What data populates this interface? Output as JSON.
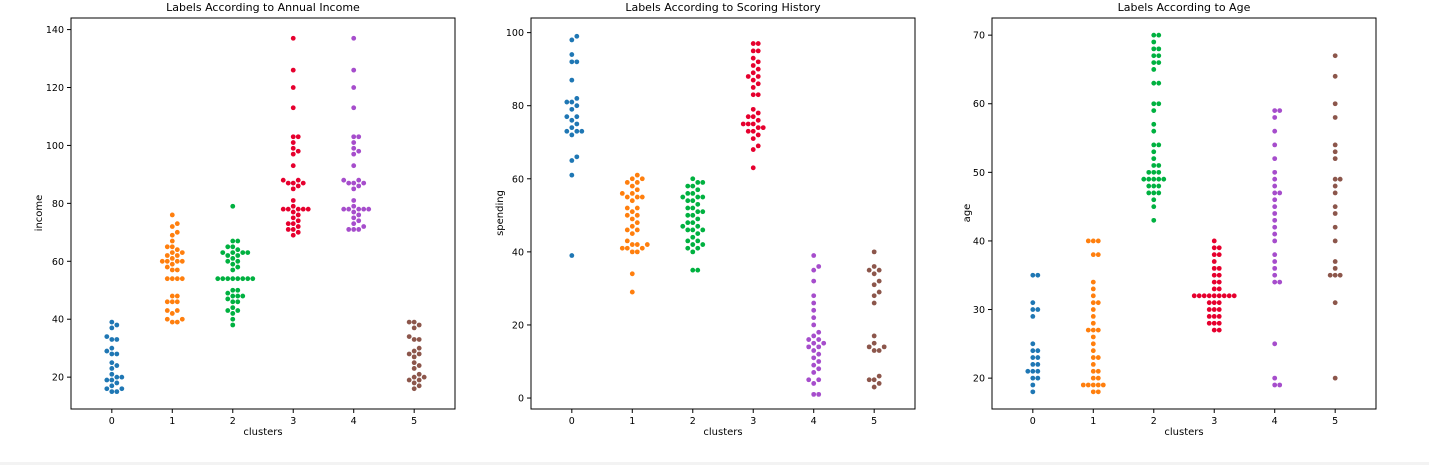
{
  "chart_data": [
    {
      "type": "scatter",
      "variant": "swarm",
      "title": "Labels According to Annual Income",
      "xlabel": "clusters",
      "ylabel": "income",
      "categories": [
        "0",
        "1",
        "2",
        "3",
        "4",
        "5"
      ],
      "ylim": [
        9,
        144
      ],
      "yticks": [
        20,
        40,
        60,
        80,
        100,
        120,
        140
      ],
      "grid": false,
      "series": [
        {
          "values": [
            15,
            15,
            16,
            16,
            17,
            18,
            19,
            19,
            20,
            20,
            21,
            23,
            24,
            25,
            28,
            28,
            29,
            30,
            33,
            33,
            34,
            37,
            38,
            39
          ],
          "color": "#1f77b4"
        },
        {
          "values": [
            39,
            39,
            40,
            40,
            42,
            43,
            43,
            46,
            46,
            46,
            48,
            48,
            54,
            54,
            54,
            54,
            57,
            57,
            58,
            59,
            60,
            60,
            60,
            60,
            61,
            62,
            62,
            63,
            63,
            64,
            65,
            65,
            67,
            69,
            70,
            72,
            73,
            76
          ],
          "color": "#ff7f0e"
        },
        {
          "values": [
            38,
            40,
            42,
            43,
            43,
            44,
            46,
            46,
            47,
            48,
            48,
            48,
            49,
            50,
            50,
            54,
            54,
            54,
            54,
            54,
            54,
            54,
            54,
            57,
            58,
            59,
            60,
            60,
            61,
            62,
            62,
            63,
            63,
            63,
            63,
            64,
            65,
            65,
            67,
            67,
            79
          ],
          "color": "#00b140"
        },
        {
          "values": [
            69,
            70,
            71,
            71,
            72,
            73,
            73,
            74,
            75,
            76,
            77,
            78,
            78,
            78,
            78,
            78,
            79,
            81,
            85,
            86,
            87,
            87,
            87,
            88,
            88,
            93,
            97,
            98,
            99,
            101,
            103,
            103,
            113,
            120,
            126,
            137
          ],
          "color": "#e6002e"
        },
        {
          "values": [
            71,
            71,
            71,
            72,
            73,
            74,
            75,
            76,
            77,
            78,
            78,
            78,
            78,
            78,
            79,
            81,
            85,
            86,
            87,
            87,
            87,
            88,
            88,
            93,
            97,
            98,
            99,
            101,
            103,
            103,
            113,
            120,
            126,
            137
          ],
          "color": "#a64dcc"
        },
        {
          "values": [
            16,
            17,
            18,
            19,
            19,
            20,
            20,
            21,
            23,
            24,
            25,
            27,
            28,
            28,
            29,
            30,
            33,
            33,
            34,
            37,
            38,
            39,
            39
          ],
          "color": "#8c564b"
        }
      ]
    },
    {
      "type": "scatter",
      "variant": "swarm",
      "title": "Labels According to Scoring History",
      "xlabel": "clusters",
      "ylabel": "spending",
      "categories": [
        "0",
        "1",
        "2",
        "3",
        "4",
        "5"
      ],
      "ylim": [
        -3,
        104
      ],
      "yticks": [
        0,
        20,
        40,
        60,
        80,
        100
      ],
      "grid": false,
      "series": [
        {
          "values": [
            39,
            61,
            65,
            66,
            72,
            73,
            73,
            73,
            74,
            75,
            76,
            77,
            77,
            79,
            80,
            81,
            81,
            82,
            87,
            92,
            92,
            94,
            98,
            99
          ],
          "color": "#1f77b4"
        },
        {
          "values": [
            29,
            34,
            40,
            40,
            41,
            41,
            41,
            42,
            42,
            42,
            43,
            45,
            46,
            46,
            47,
            48,
            49,
            50,
            50,
            51,
            52,
            52,
            54,
            55,
            55,
            55,
            56,
            56,
            57,
            58,
            59,
            59,
            60,
            60,
            61
          ],
          "color": "#ff7f0e"
        },
        {
          "values": [
            35,
            35,
            40,
            41,
            41,
            42,
            42,
            43,
            43,
            44,
            45,
            46,
            46,
            46,
            47,
            47,
            48,
            48,
            49,
            50,
            50,
            51,
            51,
            52,
            52,
            53,
            54,
            54,
            55,
            55,
            55,
            56,
            56,
            57,
            58,
            58,
            59,
            59,
            60
          ],
          "color": "#00b140"
        },
        {
          "values": [
            63,
            68,
            69,
            71,
            72,
            73,
            73,
            74,
            74,
            75,
            75,
            75,
            76,
            77,
            77,
            78,
            79,
            83,
            83,
            85,
            86,
            87,
            88,
            88,
            89,
            90,
            91,
            92,
            93,
            95,
            95,
            97,
            97
          ],
          "color": "#e6002e"
        },
        {
          "values": [
            1,
            1,
            4,
            5,
            5,
            7,
            8,
            9,
            10,
            11,
            12,
            13,
            14,
            14,
            15,
            15,
            16,
            16,
            17,
            18,
            20,
            22,
            24,
            26,
            28,
            32,
            35,
            36,
            39
          ],
          "color": "#a64dcc"
        },
        {
          "values": [
            3,
            4,
            5,
            5,
            6,
            13,
            13,
            14,
            14,
            15,
            17,
            26,
            28,
            29,
            31,
            32,
            34,
            35,
            35,
            36,
            40
          ],
          "color": "#8c564b"
        }
      ]
    },
    {
      "type": "scatter",
      "variant": "swarm",
      "title": "Labels According to Age",
      "xlabel": "clusters",
      "ylabel": "age",
      "categories": [
        "0",
        "1",
        "2",
        "3",
        "4",
        "5"
      ],
      "ylim": [
        15.5,
        72.5
      ],
      "yticks": [
        20,
        30,
        40,
        50,
        60,
        70
      ],
      "grid": false,
      "series": [
        {
          "values": [
            18,
            19,
            20,
            20,
            21,
            21,
            21,
            22,
            22,
            23,
            23,
            24,
            24,
            25,
            29,
            30,
            30,
            31,
            35,
            35
          ],
          "color": "#1f77b4"
        },
        {
          "values": [
            18,
            18,
            19,
            19,
            19,
            19,
            19,
            20,
            20,
            21,
            21,
            22,
            23,
            23,
            24,
            25,
            26,
            27,
            27,
            27,
            28,
            29,
            30,
            31,
            31,
            32,
            33,
            34,
            38,
            38,
            40,
            40,
            40
          ],
          "color": "#ff7f0e"
        },
        {
          "values": [
            43,
            45,
            46,
            47,
            47,
            47,
            48,
            48,
            48,
            49,
            49,
            49,
            49,
            49,
            50,
            50,
            50,
            51,
            51,
            52,
            53,
            54,
            54,
            56,
            57,
            59,
            60,
            60,
            63,
            63,
            65,
            66,
            66,
            67,
            67,
            68,
            68,
            69,
            70,
            70
          ],
          "color": "#00b140"
        },
        {
          "values": [
            27,
            27,
            28,
            28,
            28,
            29,
            29,
            29,
            30,
            30,
            30,
            31,
            31,
            31,
            32,
            32,
            32,
            32,
            32,
            32,
            32,
            32,
            32,
            33,
            33,
            34,
            34,
            35,
            35,
            36,
            36,
            37,
            38,
            38,
            39,
            39,
            40
          ],
          "color": "#e6002e"
        },
        {
          "values": [
            19,
            19,
            20,
            25,
            34,
            34,
            35,
            36,
            37,
            38,
            40,
            41,
            42,
            43,
            44,
            45,
            46,
            47,
            47,
            48,
            49,
            50,
            52,
            54,
            56,
            58,
            59,
            59
          ],
          "color": "#a64dcc"
        },
        {
          "values": [
            20,
            31,
            35,
            35,
            35,
            36,
            37,
            40,
            42,
            44,
            45,
            47,
            48,
            49,
            49,
            52,
            53,
            54,
            58,
            60,
            64,
            67
          ],
          "color": "#8c564b"
        }
      ]
    }
  ]
}
